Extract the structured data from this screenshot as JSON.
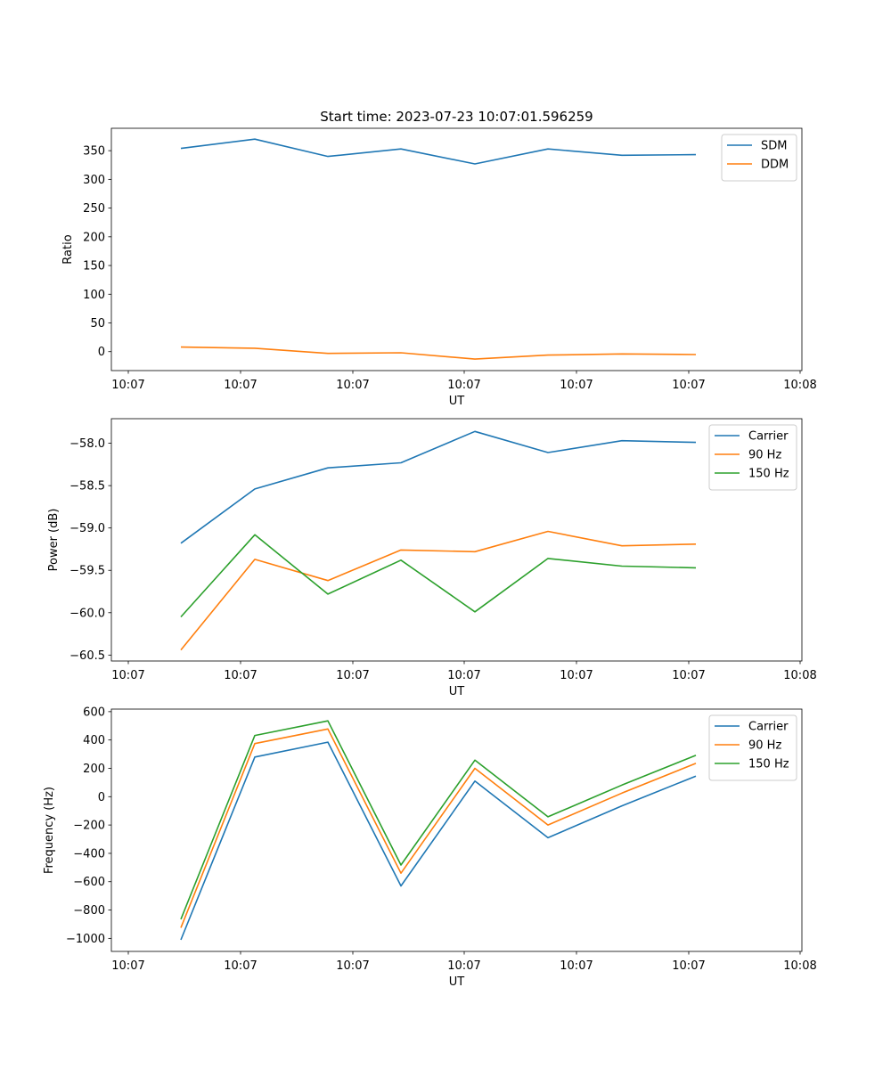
{
  "figure_title": "Start time: 2023-07-23 10:07:01.596259",
  "colors": {
    "blue": "#1f77b4",
    "orange": "#ff7f0e",
    "green": "#2ca02c"
  },
  "chart_data": [
    {
      "type": "line",
      "xlabel": "UT",
      "ylabel": "Ratio",
      "x_tick_labels": [
        "10:07",
        "10:07",
        "10:07",
        "10:07",
        "10:07",
        "10:07",
        "10:07"
      ],
      "x_tick_last_label": "10:08",
      "yticks": [
        0,
        50,
        100,
        150,
        200,
        250,
        300,
        350
      ],
      "ytick_labels": [
        "0",
        "50",
        "100",
        "150",
        "200",
        "250",
        "300",
        "350"
      ],
      "ylim": [
        -33,
        389
      ],
      "legend_position": "upper right",
      "series": [
        {
          "name": "SDM",
          "color": "#1f77b4",
          "values": [
            354,
            370,
            340,
            353,
            327,
            353,
            342,
            343
          ]
        },
        {
          "name": "DDM",
          "color": "#ff7f0e",
          "values": [
            8,
            6,
            -3,
            -2,
            -13,
            -6,
            -4,
            -5
          ]
        }
      ]
    },
    {
      "type": "line",
      "xlabel": "UT",
      "ylabel": "Power (dB)",
      "x_tick_labels": [
        "10:07",
        "10:07",
        "10:07",
        "10:07",
        "10:07",
        "10:07",
        "10:07"
      ],
      "x_tick_last_label": "10:08",
      "yticks": [
        -60.5,
        -60.0,
        -59.5,
        -59.0,
        -58.5,
        -58.0
      ],
      "ytick_labels": [
        "−60.5",
        "−60.0",
        "−59.5",
        "−59.0",
        "−58.5",
        "−58.0"
      ],
      "ylim": [
        -60.57,
        -57.71
      ],
      "legend_position": "upper right",
      "series": [
        {
          "name": "Carrier",
          "color": "#1f77b4",
          "values": [
            -59.18,
            -58.54,
            -58.29,
            -58.23,
            -57.86,
            -58.11,
            -57.97,
            -57.99
          ]
        },
        {
          "name": "90 Hz",
          "color": "#ff7f0e",
          "values": [
            -60.44,
            -59.37,
            -59.62,
            -59.26,
            -59.28,
            -59.04,
            -59.21,
            -59.19
          ]
        },
        {
          "name": "150 Hz",
          "color": "#2ca02c",
          "values": [
            -60.05,
            -59.08,
            -59.78,
            -59.38,
            -59.99,
            -59.36,
            -59.45,
            -59.47
          ]
        }
      ]
    },
    {
      "type": "line",
      "xlabel": "UT",
      "ylabel": "Frequency (Hz)",
      "x_tick_labels": [
        "10:07",
        "10:07",
        "10:07",
        "10:07",
        "10:07",
        "10:07",
        "10:07"
      ],
      "x_tick_last_label": "10:08",
      "yticks": [
        -1000,
        -800,
        -600,
        -400,
        -200,
        0,
        200,
        400,
        600
      ],
      "ytick_labels": [
        "−1000",
        "−800",
        "−600",
        "−400",
        "−200",
        "0",
        "200",
        "400",
        "600"
      ],
      "ylim": [
        -1092,
        618
      ],
      "legend_position": "upper right",
      "series": [
        {
          "name": "Carrier",
          "color": "#1f77b4",
          "values": [
            -1010,
            280,
            385,
            -630,
            110,
            -290,
            -65,
            145
          ]
        },
        {
          "name": "90 Hz",
          "color": "#ff7f0e",
          "values": [
            -925,
            375,
            478,
            -540,
            200,
            -200,
            25,
            235
          ]
        },
        {
          "name": "150 Hz",
          "color": "#2ca02c",
          "values": [
            -865,
            432,
            535,
            -482,
            258,
            -142,
            82,
            292
          ]
        }
      ]
    }
  ]
}
